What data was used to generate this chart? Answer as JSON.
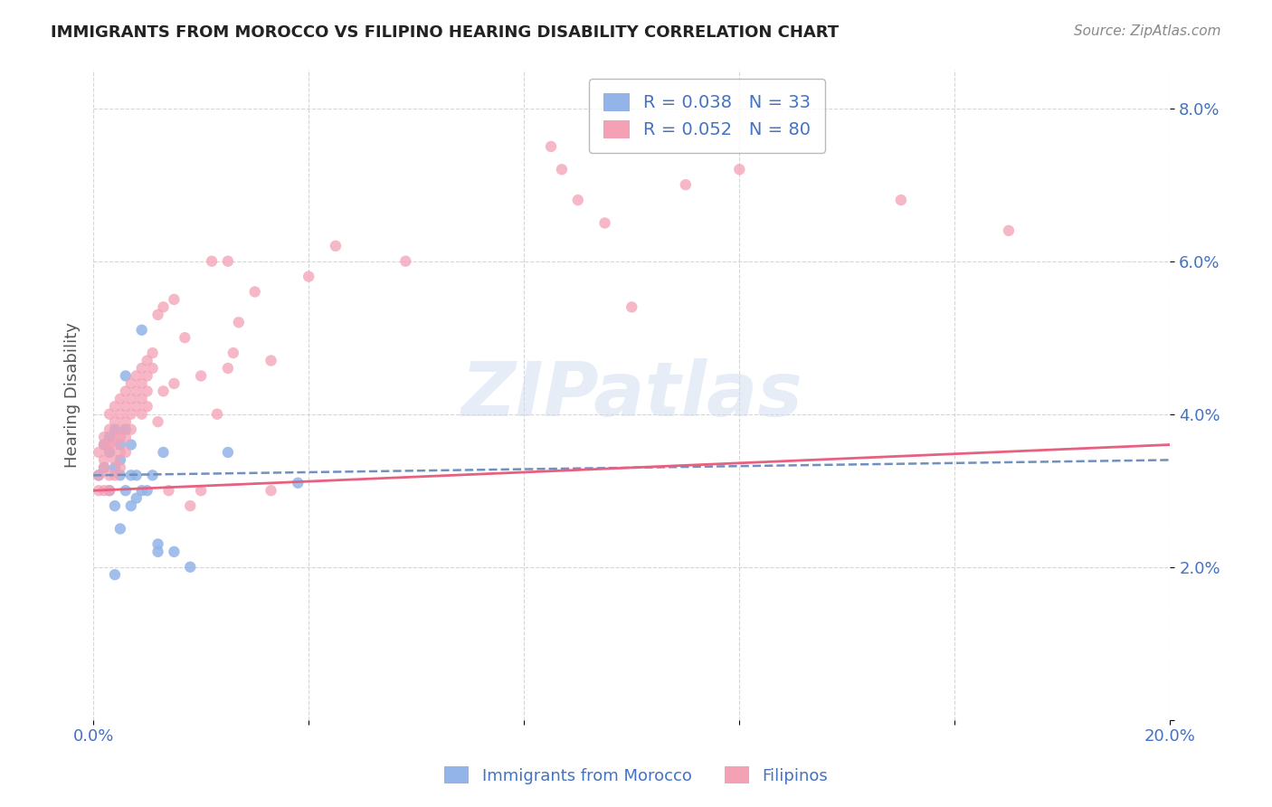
{
  "title": "IMMIGRANTS FROM MOROCCO VS FILIPINO HEARING DISABILITY CORRELATION CHART",
  "source": "Source: ZipAtlas.com",
  "xlabel_color": "#4472c4",
  "ylabel": "Hearing Disability",
  "xlim": [
    0.0,
    0.2
  ],
  "ylim": [
    0.0,
    0.085
  ],
  "xticks": [
    0.0,
    0.04,
    0.08,
    0.12,
    0.16,
    0.2
  ],
  "yticks": [
    0.0,
    0.02,
    0.04,
    0.06,
    0.08
  ],
  "ytick_labels": [
    "",
    "2.0%",
    "4.0%",
    "6.0%",
    "8.0%"
  ],
  "xtick_labels": [
    "0.0%",
    "",
    "",
    "",
    "",
    "20.0%"
  ],
  "grid_color": "#cccccc",
  "background_color": "#ffffff",
  "watermark": "ZIPatlas",
  "legend_R1": "R = 0.038",
  "legend_N1": "N = 33",
  "legend_R2": "R = 0.052",
  "legend_N2": "N = 80",
  "legend_label1": "Immigrants from Morocco",
  "legend_label2": "Filipinos",
  "scatter_color1": "#92b4e8",
  "scatter_color2": "#f4a0b5",
  "line_color1": "#7090c0",
  "line_color2": "#e86080",
  "trendline1_x": [
    0.0,
    0.2
  ],
  "trendline1_y": [
    0.032,
    0.034
  ],
  "trendline2_x": [
    0.0,
    0.2
  ],
  "trendline2_y": [
    0.03,
    0.036
  ],
  "scatter1_x": [
    0.001,
    0.002,
    0.002,
    0.003,
    0.003,
    0.003,
    0.004,
    0.004,
    0.004,
    0.004,
    0.005,
    0.005,
    0.005,
    0.005,
    0.006,
    0.006,
    0.006,
    0.007,
    0.007,
    0.007,
    0.008,
    0.008,
    0.009,
    0.009,
    0.01,
    0.011,
    0.012,
    0.012,
    0.013,
    0.015,
    0.018,
    0.025,
    0.038
  ],
  "scatter1_y": [
    0.032,
    0.036,
    0.033,
    0.037,
    0.035,
    0.03,
    0.038,
    0.033,
    0.028,
    0.019,
    0.036,
    0.034,
    0.032,
    0.025,
    0.045,
    0.038,
    0.03,
    0.036,
    0.032,
    0.028,
    0.032,
    0.029,
    0.051,
    0.03,
    0.03,
    0.032,
    0.023,
    0.022,
    0.035,
    0.022,
    0.02,
    0.035,
    0.031
  ],
  "scatter2_x": [
    0.001,
    0.001,
    0.001,
    0.002,
    0.002,
    0.002,
    0.002,
    0.002,
    0.003,
    0.003,
    0.003,
    0.003,
    0.003,
    0.003,
    0.004,
    0.004,
    0.004,
    0.004,
    0.004,
    0.004,
    0.005,
    0.005,
    0.005,
    0.005,
    0.005,
    0.005,
    0.006,
    0.006,
    0.006,
    0.006,
    0.006,
    0.007,
    0.007,
    0.007,
    0.007,
    0.008,
    0.008,
    0.008,
    0.009,
    0.009,
    0.009,
    0.009,
    0.01,
    0.01,
    0.01,
    0.01,
    0.011,
    0.011,
    0.012,
    0.012,
    0.013,
    0.013,
    0.014,
    0.015,
    0.015,
    0.017,
    0.018,
    0.02,
    0.02,
    0.022,
    0.023,
    0.025,
    0.025,
    0.026,
    0.027,
    0.03,
    0.033,
    0.033,
    0.04,
    0.045,
    0.058,
    0.085,
    0.087,
    0.09,
    0.095,
    0.1,
    0.11,
    0.12,
    0.15,
    0.17
  ],
  "scatter2_y": [
    0.032,
    0.035,
    0.03,
    0.037,
    0.036,
    0.034,
    0.033,
    0.03,
    0.04,
    0.038,
    0.036,
    0.035,
    0.032,
    0.03,
    0.041,
    0.039,
    0.037,
    0.036,
    0.034,
    0.032,
    0.042,
    0.04,
    0.038,
    0.037,
    0.035,
    0.033,
    0.043,
    0.041,
    0.039,
    0.037,
    0.035,
    0.044,
    0.042,
    0.04,
    0.038,
    0.045,
    0.043,
    0.041,
    0.046,
    0.044,
    0.042,
    0.04,
    0.047,
    0.045,
    0.043,
    0.041,
    0.048,
    0.046,
    0.053,
    0.039,
    0.054,
    0.043,
    0.03,
    0.055,
    0.044,
    0.05,
    0.028,
    0.045,
    0.03,
    0.06,
    0.04,
    0.06,
    0.046,
    0.048,
    0.052,
    0.056,
    0.03,
    0.047,
    0.058,
    0.062,
    0.06,
    0.075,
    0.072,
    0.068,
    0.065,
    0.054,
    0.07,
    0.072,
    0.068,
    0.064
  ]
}
